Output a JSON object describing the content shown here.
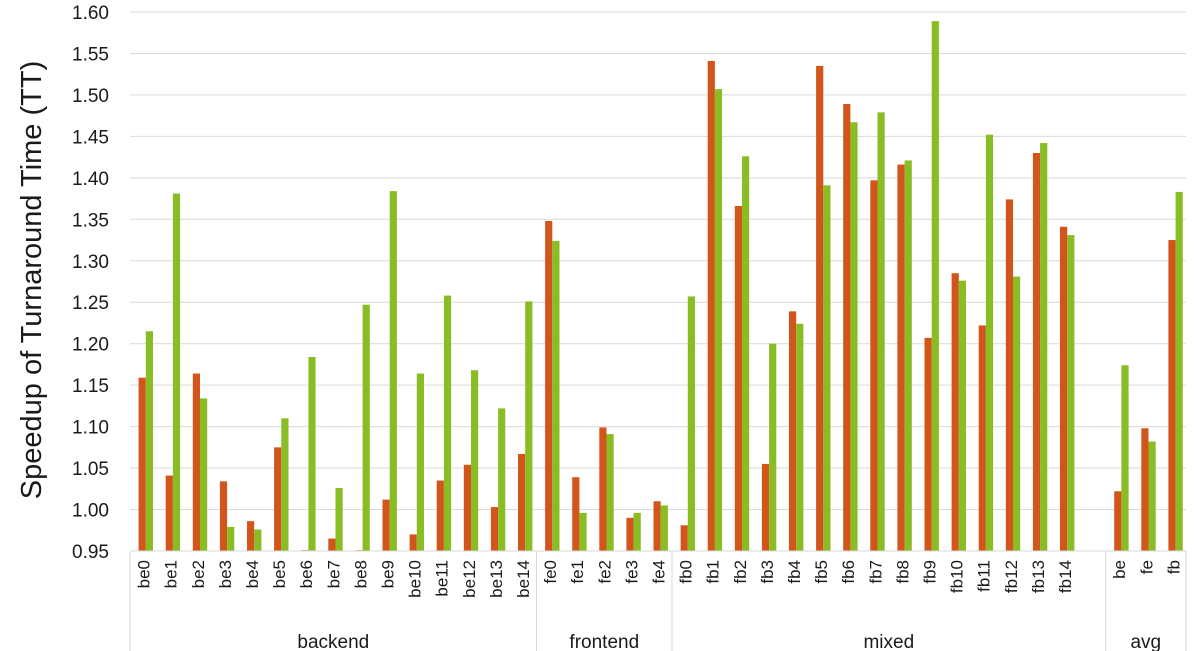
{
  "chart_data": {
    "type": "bar",
    "xlabel": "",
    "ylabel": "Speedup of Turnaround Time (TT)",
    "ylim": [
      0.95,
      1.6
    ],
    "ytick_step": 0.05,
    "grid": true,
    "colors": [
      "#d2561b",
      "#8abd24"
    ],
    "groups": [
      {
        "label": "backend",
        "categories": [
          "be0",
          "be1",
          "be2",
          "be3",
          "be4",
          "be5",
          "be6",
          "be7",
          "be8",
          "be9",
          "be10",
          "be11",
          "be12",
          "be13",
          "be14"
        ]
      },
      {
        "label": "frontend",
        "categories": [
          "fe0",
          "fe1",
          "fe2",
          "fe3",
          "fe4"
        ]
      },
      {
        "label": "mixed",
        "categories": [
          "fb0",
          "fb1",
          "fb2",
          "fb3",
          "fb4",
          "fb5",
          "fb6",
          "fb7",
          "fb8",
          "fb9",
          "fb10",
          "fb11",
          "fb12",
          "fb13",
          "fb14"
        ]
      },
      {
        "label": "avg",
        "categories": [
          "be",
          "fe",
          "fb"
        ]
      }
    ],
    "series": [
      {
        "values": [
          1.159,
          1.041,
          1.164,
          1.034,
          0.986,
          1.075,
          0.951,
          0.965,
          0.95,
          1.012,
          0.97,
          1.035,
          1.054,
          1.003,
          1.067,
          1.348,
          1.039,
          1.099,
          0.99,
          1.01,
          0.981,
          1.541,
          1.366,
          1.055,
          1.239,
          1.535,
          1.489,
          1.397,
          1.416,
          1.207,
          1.285,
          1.222,
          1.374,
          1.43,
          1.341,
          1.022,
          1.098,
          1.325
        ]
      },
      {
        "values": [
          1.215,
          1.381,
          1.134,
          0.979,
          0.976,
          1.11,
          1.184,
          1.026,
          1.247,
          1.384,
          1.164,
          1.258,
          1.168,
          1.122,
          1.251,
          1.324,
          0.996,
          1.091,
          0.996,
          1.005,
          1.257,
          1.507,
          1.426,
          1.2,
          1.224,
          1.391,
          1.467,
          1.479,
          1.421,
          1.589,
          1.276,
          1.452,
          1.281,
          1.442,
          1.331,
          1.174,
          1.082,
          1.383
        ]
      }
    ]
  }
}
